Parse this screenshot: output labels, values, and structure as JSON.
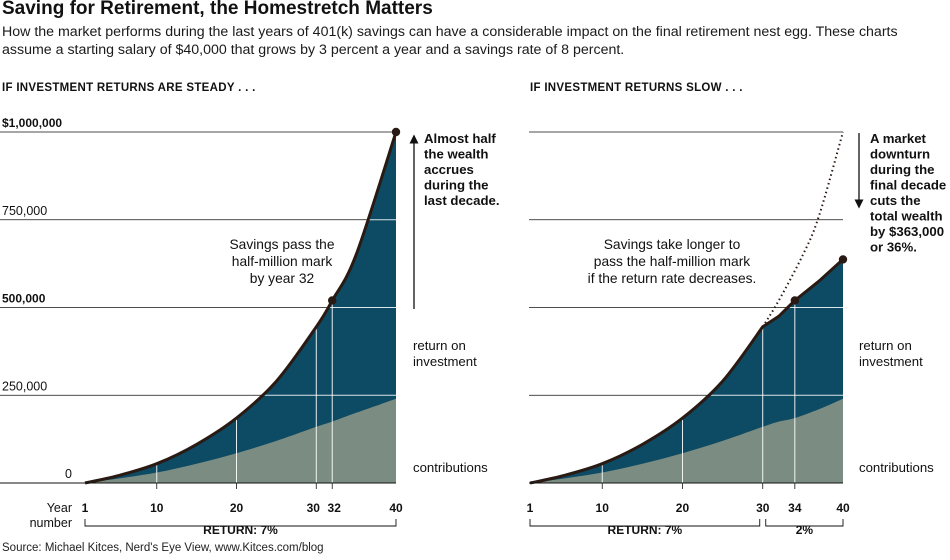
{
  "header": {
    "title": "Saving for Retirement, the Homestretch Matters",
    "subtitle": "How the market performs during the last years of 401(k) savings can have a considerable impact on the final retirement nest egg. These charts assume a starting salary of $40,000 that grows by 3 percent a year and a savings rate of 8 percent."
  },
  "source": "Source: Michael Kitces, Nerd's Eye View, www.Kitces.com/blog",
  "colors": {
    "return_fill": "#0d4a63",
    "contribution_fill": "#7b8d82",
    "line": "#2a1a14",
    "grid": "#111111"
  },
  "chart_data": [
    {
      "type": "area",
      "panel_title": "IF INVESTMENT RETURNS ARE STEADY . . .",
      "x": [
        1,
        5,
        10,
        15,
        20,
        25,
        30,
        32,
        35,
        40
      ],
      "series": [
        {
          "name": "Total savings",
          "values": [
            0,
            20000,
            55000,
            110000,
            185000,
            290000,
            445000,
            520000,
            650000,
            1000000
          ]
        },
        {
          "name": "Contributions",
          "values": [
            0,
            12000,
            30000,
            55000,
            85000,
            120000,
            160000,
            175000,
            200000,
            240000
          ]
        }
      ],
      "ylim": [
        0,
        1000000
      ],
      "yticks": [
        {
          "value": 0,
          "label": "0"
        },
        {
          "value": 250000,
          "label": "250,000"
        },
        {
          "value": 500000,
          "label": "500,000"
        },
        {
          "value": 750000,
          "label": "750,000"
        },
        {
          "value": 1000000,
          "label": "$1,000,000"
        }
      ],
      "xticks": [
        {
          "value": 1,
          "label": "1"
        },
        {
          "value": 10,
          "label": "10"
        },
        {
          "value": 20,
          "label": "20"
        },
        {
          "value": 30,
          "label": "30"
        },
        {
          "value": 32,
          "label": "32"
        },
        {
          "value": 40,
          "label": "40"
        }
      ],
      "xlabel_line1": "Year",
      "xlabel_line2": "number",
      "dots": [
        {
          "x": 32,
          "y": 520000
        },
        {
          "x": 40,
          "y": 1000000
        }
      ],
      "annotations": {
        "pass": [
          "Savings pass the",
          "half-million mark",
          "by year 32"
        ],
        "arrow": [
          "Almost half",
          "the wealth",
          "accrues",
          "during the",
          "last decade."
        ]
      },
      "series_labels": {
        "return": [
          "return on",
          "investment"
        ],
        "contributions": "contributions"
      },
      "return_brackets": [
        {
          "from": 1,
          "to": 40,
          "label": "RETURN: 7%"
        }
      ]
    },
    {
      "type": "area",
      "panel_title": "IF INVESTMENT RETURNS SLOW . . .",
      "x": [
        1,
        5,
        10,
        15,
        20,
        25,
        30,
        32,
        34,
        37,
        40
      ],
      "series": [
        {
          "name": "Total savings",
          "values": [
            0,
            20000,
            55000,
            110000,
            185000,
            290000,
            445000,
            475000,
            520000,
            575000,
            637000
          ]
        },
        {
          "name": "Contributions",
          "values": [
            0,
            12000,
            30000,
            55000,
            85000,
            120000,
            160000,
            175000,
            185000,
            210000,
            240000
          ]
        },
        {
          "name": "Steady-return path",
          "style": "dotted",
          "x": [
            30,
            32,
            35,
            37,
            40
          ],
          "values": [
            445000,
            520000,
            650000,
            760000,
            1000000
          ]
        }
      ],
      "ylim": [
        0,
        1000000
      ],
      "yticks": [
        {
          "value": 250000,
          "label": ""
        },
        {
          "value": 500000,
          "label": ""
        },
        {
          "value": 750000,
          "label": ""
        },
        {
          "value": 1000000,
          "label": ""
        }
      ],
      "xticks": [
        {
          "value": 1,
          "label": "1"
        },
        {
          "value": 10,
          "label": "10"
        },
        {
          "value": 20,
          "label": "20"
        },
        {
          "value": 30,
          "label": "30"
        },
        {
          "value": 34,
          "label": "34"
        },
        {
          "value": 40,
          "label": "40"
        }
      ],
      "dots": [
        {
          "x": 34,
          "y": 520000
        },
        {
          "x": 40,
          "y": 637000
        }
      ],
      "annotations": {
        "pass": [
          "Savings take longer to",
          "pass the half-million mark",
          "if the return rate decreases."
        ],
        "arrow": [
          "A market",
          "downturn",
          "during the",
          "final decade",
          "cuts the",
          "total wealth",
          "by $363,000",
          "or 36%."
        ]
      },
      "series_labels": {
        "return": [
          "return on",
          "investment"
        ],
        "contributions": "contributions"
      },
      "return_brackets": [
        {
          "from": 1,
          "to": 30,
          "label": "RETURN: 7%"
        },
        {
          "from": 30,
          "to": 40,
          "label": "2%"
        }
      ]
    }
  ]
}
